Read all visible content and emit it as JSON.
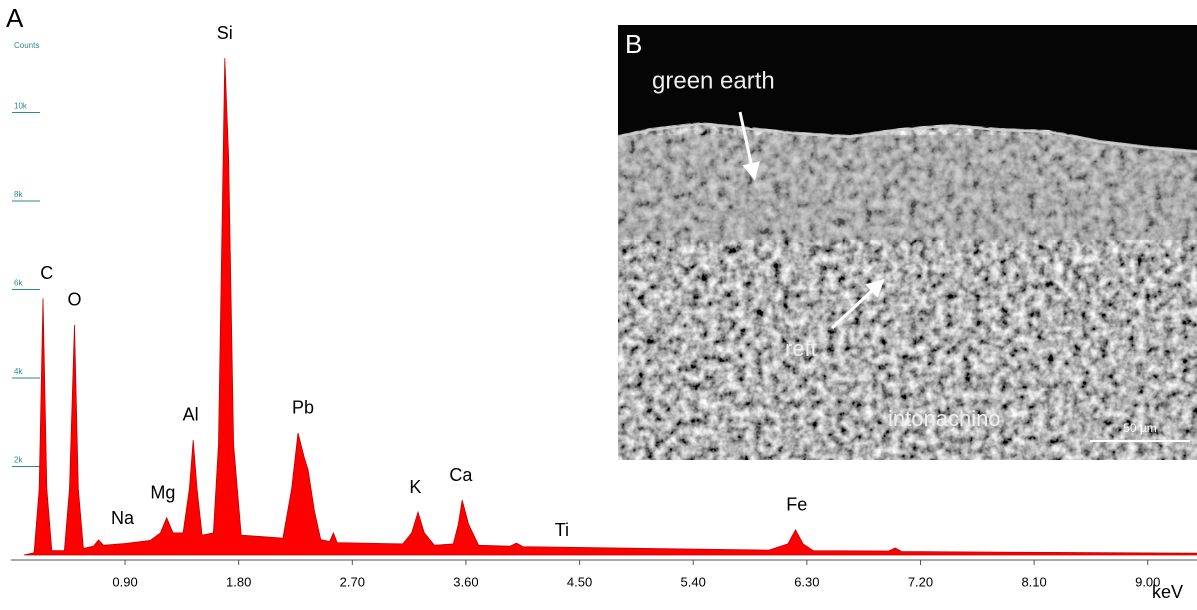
{
  "chart_data": {
    "type": "area",
    "panel_label": "A",
    "x_label": "keV",
    "y_label": "Counts",
    "color": "#ff0000",
    "x": [
      0.1,
      0.18,
      0.22,
      0.25,
      0.28,
      0.32,
      0.42,
      0.46,
      0.5,
      0.53,
      0.57,
      0.65,
      0.69,
      0.73,
      0.9,
      1.1,
      1.18,
      1.23,
      1.28,
      1.36,
      1.41,
      1.44,
      1.47,
      1.51,
      1.6,
      1.64,
      1.69,
      1.72,
      1.76,
      1.82,
      2.15,
      2.22,
      2.27,
      2.32,
      2.35,
      2.4,
      2.45,
      2.52,
      2.55,
      2.58,
      3.1,
      3.17,
      3.22,
      3.27,
      3.35,
      3.5,
      3.54,
      3.57,
      3.62,
      3.7,
      3.95,
      4.0,
      4.05,
      5.0,
      6.0,
      6.15,
      6.21,
      6.27,
      6.35,
      6.95,
      7.0,
      7.05,
      8.0,
      9.39
    ],
    "values": [
      0,
      50,
      1500,
      5800,
      1500,
      100,
      100,
      1500,
      5200,
      1500,
      150,
      200,
      340,
      220,
      260,
      330,
      500,
      840,
      500,
      500,
      1500,
      2600,
      1500,
      450,
      500,
      2500,
      11230,
      9000,
      2500,
      450,
      380,
      1500,
      2760,
      2200,
      1920,
      1000,
      350,
      300,
      500,
      280,
      250,
      500,
      970,
      500,
      220,
      250,
      700,
      1240,
      700,
      220,
      200,
      270,
      190,
      150,
      110,
      250,
      570,
      250,
      100,
      90,
      160,
      80,
      60,
      40
    ],
    "xlim": [
      0,
      9.39
    ],
    "ylim": [
      0,
      12100
    ],
    "xticks": [
      {
        "value": 0.9,
        "label": "0.90"
      },
      {
        "value": 1.8,
        "label": "1.80"
      },
      {
        "value": 2.7,
        "label": "2.70"
      },
      {
        "value": 3.6,
        "label": "3.60"
      },
      {
        "value": 4.5,
        "label": "4.50"
      },
      {
        "value": 5.4,
        "label": "5.40"
      },
      {
        "value": 6.3,
        "label": "6.30"
      },
      {
        "value": 7.2,
        "label": "7.20"
      },
      {
        "value": 8.1,
        "label": "8.10"
      },
      {
        "value": 9.0,
        "label": "9.00"
      }
    ],
    "yticks": [
      {
        "value": 2000,
        "label": "2k"
      },
      {
        "value": 4000,
        "label": "4k"
      },
      {
        "value": 6000,
        "label": "6k"
      },
      {
        "value": 8000,
        "label": "8k"
      },
      {
        "value": 10000,
        "label": "10k"
      }
    ],
    "peak_labels": [
      {
        "label": "C",
        "x": 0.28
      },
      {
        "label": "O",
        "x": 0.5
      },
      {
        "label": "Na",
        "x": 0.88
      },
      {
        "label": "Mg",
        "x": 1.2
      },
      {
        "label": "Al",
        "x": 1.42
      },
      {
        "label": "Si",
        "x": 1.69
      },
      {
        "label": "Pb",
        "x": 2.31
      },
      {
        "label": "K",
        "x": 3.2
      },
      {
        "label": "Ca",
        "x": 3.56
      },
      {
        "label": "Ti",
        "x": 4.36
      },
      {
        "label": "Fe",
        "x": 6.22
      }
    ]
  },
  "image_panel": {
    "label": "B",
    "annotations": [
      "green earth",
      "reft",
      "intonachino"
    ],
    "scale_bar": "50 µm"
  }
}
